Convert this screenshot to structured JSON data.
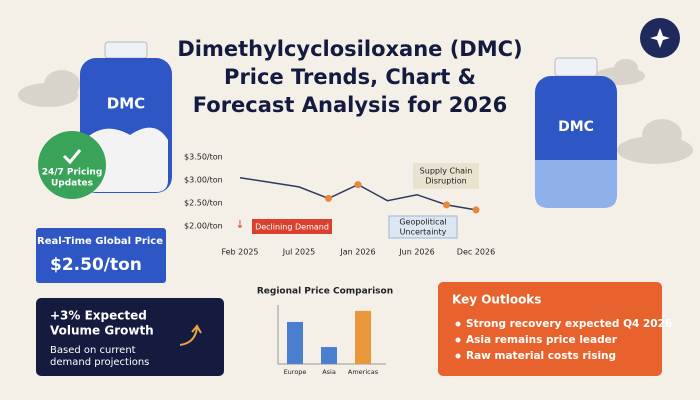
{
  "header": {
    "title": [
      "Dimethylcyclosiloxane (DMC)",
      "Price Trends, Chart &",
      "Forecast Analysis for 2026"
    ]
  },
  "bottles": {
    "left_label": "DMC",
    "right_label": "DMC"
  },
  "badge": {
    "lines": [
      "24/7 Pricing",
      "Updates"
    ]
  },
  "price_box": {
    "label": "Real-Time Global Price",
    "value": "$2.50/ton"
  },
  "growth_box": {
    "title": [
      "+3% Expected",
      "Volume Growth"
    ],
    "text": [
      "Based on current",
      "demand projections"
    ]
  },
  "outlooks": {
    "title": "Key Outlooks",
    "items": [
      "Strong recovery expected Q4 2026",
      "Asia remains price leader",
      "Raw material costs rising"
    ]
  },
  "chart_data": [
    {
      "type": "line",
      "categories": [
        "Feb 2025",
        null,
        "Jul 2025",
        null,
        "Jan 2026",
        null,
        "Jun 2026",
        null,
        "Dec 2026"
      ],
      "values": [
        3.05,
        2.95,
        2.85,
        2.6,
        2.9,
        2.55,
        2.68,
        2.46,
        2.35
      ],
      "color": "#2f3b5c",
      "marker_color": "#e8873a",
      "highlighted": [
        3,
        4,
        7,
        8
      ],
      "ylim": [
        2.0,
        3.5
      ],
      "yticks": [
        {
          "value": 2.0,
          "label": "$2.00/ton"
        },
        {
          "value": 2.5,
          "label": "$2.50/ton"
        },
        {
          "value": 3.0,
          "label": "$3.00/ton"
        },
        {
          "value": 3.5,
          "label": "$3.50/ton"
        }
      ],
      "annotations": {
        "supply": [
          "Supply Chain",
          "Disruption"
        ],
        "declining": "Declining Demand",
        "arrow": "↓",
        "geo": [
          "Geopolitical",
          "Uncertainty"
        ]
      }
    },
    {
      "type": "bar",
      "title": "Regional Price Comparison",
      "categories": [
        "Europe",
        "Asia",
        "Americas"
      ],
      "values": [
        2.85,
        1.15,
        3.6
      ],
      "colors": [
        "#4a7fd0",
        "#4a7fd0",
        "#e8973a"
      ],
      "ylim": [
        0,
        4
      ]
    }
  ]
}
